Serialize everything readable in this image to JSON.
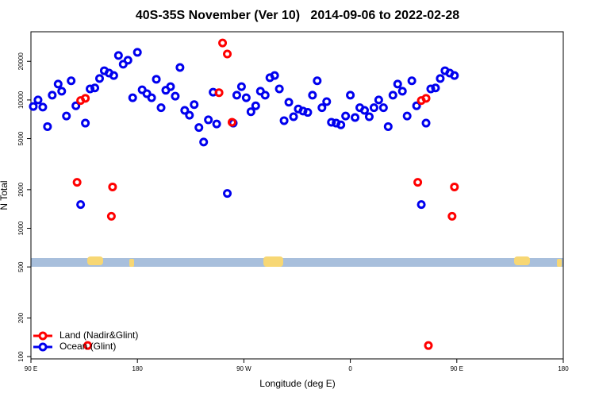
{
  "chart_data": {
    "type": "scatter",
    "log_y": true,
    "title": "40S-35S November (Ver 10)   2014-09-06 to 2022-02-28",
    "x_label": "Longitude (deg E)",
    "y_label": "N Total",
    "xlim": [
      90,
      540
    ],
    "ylim": [
      96,
      34000
    ],
    "xticks": [
      {
        "value": 90,
        "label": "90 E"
      },
      {
        "value": 180,
        "label": "180"
      },
      {
        "value": 270,
        "label": "90 W"
      },
      {
        "value": 360,
        "label": "0"
      },
      {
        "value": 450,
        "label": "90 E"
      },
      {
        "value": 540,
        "label": "180"
      }
    ],
    "yticks": [
      100,
      200,
      500,
      1000,
      2000,
      5000,
      10000,
      20000
    ],
    "legend": "bottom-left",
    "series": [
      {
        "name": "Land (Nadir&Glint)",
        "color": "#ff0000",
        "x": [
          129,
          132,
          136,
          138,
          158,
          159,
          249,
          252,
          256,
          260,
          417,
          420,
          424,
          426,
          446,
          448
        ],
        "values": [
          2280,
          9900,
          10300,
          122,
          1240,
          2100,
          11400,
          27800,
          22800,
          6700,
          2280,
          9900,
          10300,
          122,
          1240,
          2100
        ]
      },
      {
        "name": "Ocean (Glint)",
        "color": "#0000ee",
        "x": [
          92,
          96,
          100,
          104,
          108,
          113,
          116,
          120,
          124,
          128,
          132,
          136,
          140,
          144,
          148,
          152,
          156,
          160,
          164,
          168,
          172,
          176,
          180,
          184,
          188,
          192,
          196,
          200,
          204,
          208,
          212,
          216,
          220,
          224,
          228,
          232,
          236,
          240,
          244,
          247,
          256,
          261,
          264,
          268,
          272,
          276,
          280,
          284,
          288,
          292,
          296,
          300,
          304,
          308,
          312,
          316,
          320,
          324,
          328,
          332,
          336,
          340,
          344,
          348,
          352,
          356,
          360,
          364,
          368,
          372,
          376,
          380,
          384,
          388,
          392,
          396,
          400,
          404,
          408,
          412,
          416,
          420,
          424,
          428,
          432,
          436,
          440,
          444,
          448
        ],
        "values": [
          8900,
          10000,
          8800,
          6200,
          10900,
          13300,
          11700,
          7500,
          14100,
          9000,
          1530,
          6600,
          12200,
          12400,
          14700,
          16900,
          16200,
          15500,
          22200,
          19000,
          20400,
          10400,
          23500,
          12000,
          11200,
          10400,
          14500,
          8700,
          11900,
          12700,
          10700,
          17900,
          8300,
          7600,
          9200,
          6100,
          4700,
          7000,
          11500,
          6500,
          1870,
          6600,
          10900,
          12700,
          10400,
          8100,
          9000,
          11700,
          10900,
          14900,
          15500,
          12200,
          6900,
          9600,
          7400,
          8500,
          8200,
          8000,
          10900,
          14100,
          8700,
          9700,
          6700,
          6600,
          6400,
          7500,
          10900,
          7300,
          8700,
          8300,
          7400,
          8700,
          10000,
          8700,
          6200,
          10900,
          13300,
          11700,
          7500,
          14100,
          9000,
          1530,
          6600,
          12200,
          12400,
          14700,
          16900,
          16200,
          15500
        ]
      }
    ]
  }
}
